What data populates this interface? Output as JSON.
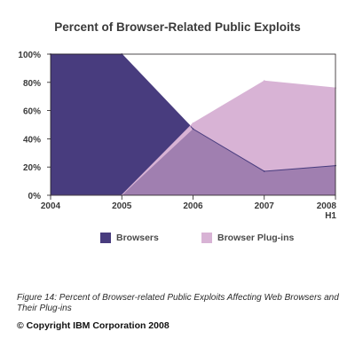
{
  "chart_data": {
    "type": "area",
    "title": "Percent of Browser-Related Public Exploits",
    "x": [
      "2004",
      "2005",
      "2006",
      "2007",
      "2008 H1"
    ],
    "x_tick_lines": [
      [
        "2004"
      ],
      [
        "2005"
      ],
      [
        "2006"
      ],
      [
        "2007"
      ],
      [
        "2008",
        "H1"
      ]
    ],
    "ylim": [
      0,
      100
    ],
    "y_ticks": [
      0,
      20,
      40,
      60,
      80,
      100
    ],
    "y_tick_labels": [
      "0%",
      "20%",
      "40%",
      "60%",
      "80%",
      "100%"
    ],
    "series": [
      {
        "name": "Browsers",
        "values": [
          100,
          100,
          47,
          17,
          21
        ],
        "color": "#483c7e"
      },
      {
        "name": "Browser Plug-ins",
        "values": [
          0,
          0,
          51,
          81,
          76
        ],
        "color": "#d8b3d5"
      }
    ],
    "overlap_color": "#a07fb0",
    "legend_position": "bottom",
    "grid": false
  },
  "caption": "Figure 14: Percent of Browser-related Public Exploits Affecting Web Browsers and Their Plug-ins",
  "copyright": "© Copyright IBM Corporation 2008"
}
